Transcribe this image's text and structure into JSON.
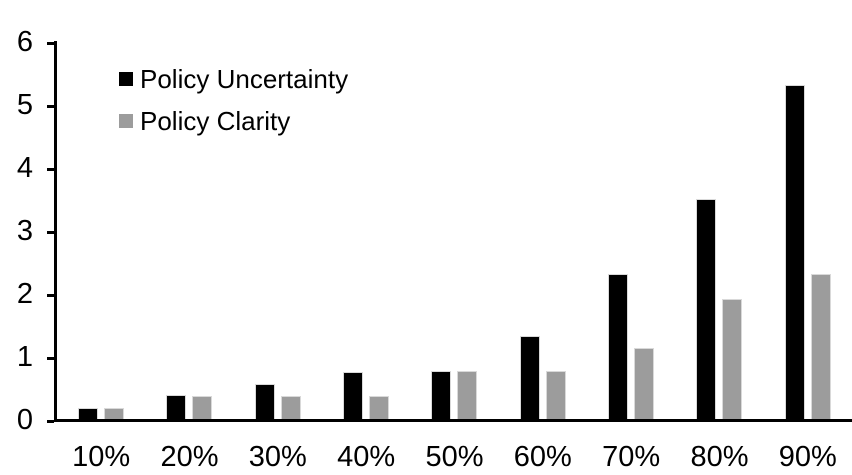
{
  "chart_data": {
    "type": "bar",
    "title": "",
    "xlabel": "",
    "ylabel": "",
    "categories": [
      "10%",
      "20%",
      "30%",
      "40%",
      "50%",
      "60%",
      "70%",
      "80%",
      "90%"
    ],
    "series": [
      {
        "name": "Policy Uncertainty",
        "color": "#000000",
        "values": [
          0.18,
          0.38,
          0.55,
          0.75,
          0.77,
          1.32,
          2.3,
          3.5,
          5.3
        ]
      },
      {
        "name": "Policy Clarity",
        "color": "#9c9c9c",
        "values": [
          0.18,
          0.37,
          0.37,
          0.37,
          0.77,
          0.77,
          1.13,
          1.9,
          2.3
        ]
      }
    ],
    "ylim": [
      0,
      6
    ],
    "ytick_labels": [
      "0",
      "1",
      "2",
      "3",
      "4",
      "5",
      "6"
    ],
    "grid": false,
    "legend_position": "top-left-inside",
    "bar_border_color": "#d9d9d9",
    "axis_color": "#000000",
    "background_color": "#ffffff"
  }
}
